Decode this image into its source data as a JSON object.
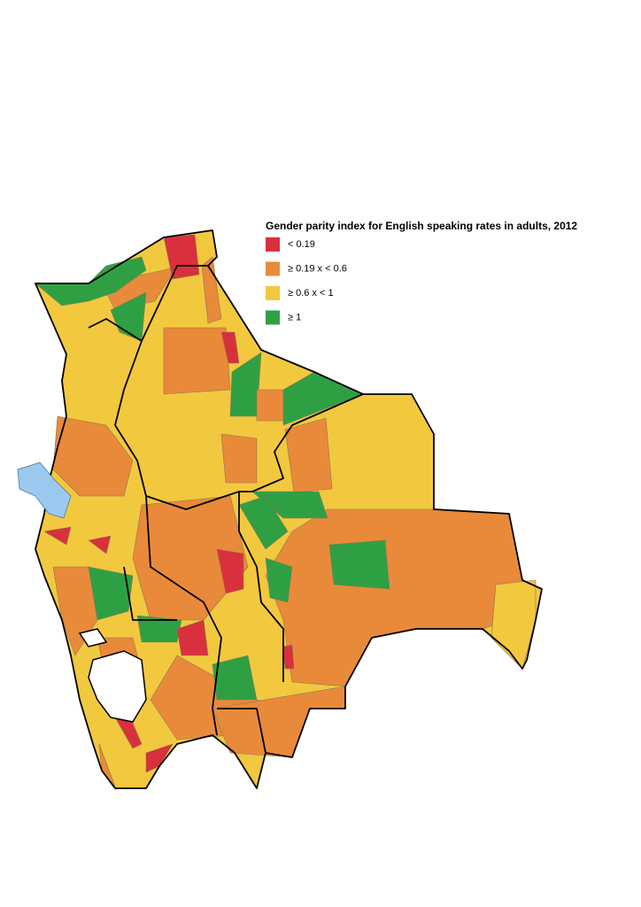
{
  "legend": {
    "title": "Gender parity index for English speaking rates in adults, 2012",
    "items": [
      {
        "label": "< 0.19",
        "color": "#d9303e"
      },
      {
        "label": "≥ 0.19 x < 0.6",
        "color": "#e88a3a"
      },
      {
        "label": "≥ 0.6 x < 1",
        "color": "#f2c83f"
      },
      {
        "label": "≥ 1",
        "color": "#2ea043"
      }
    ]
  }
}
